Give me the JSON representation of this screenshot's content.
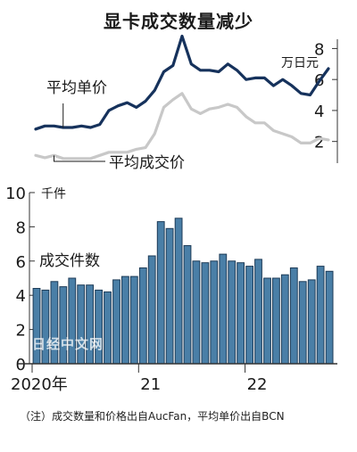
{
  "title": "显卡成交数量减少",
  "note": "（注）成交数量和价格出自AucFan，平均单价出自BCN",
  "watermark": "日经中文网",
  "colors": {
    "navy": "#16325c",
    "gray": "#c8c8c8",
    "bar": "#4a7fa7",
    "bar_edge": "#1d3b57"
  },
  "chart_data": [
    {
      "type": "line",
      "y_unit": "万日元",
      "y_ticks": [
        2,
        4,
        6,
        8
      ],
      "ylim": [
        0.6,
        8.6
      ],
      "series": [
        {
          "name": "平均单价",
          "values": [
            2.8,
            3.0,
            3.0,
            2.9,
            2.9,
            3.0,
            2.9,
            3.1,
            4.0,
            4.3,
            4.5,
            4.2,
            4.6,
            5.3,
            6.5,
            6.9,
            8.8,
            7.0,
            6.6,
            6.6,
            6.5,
            7.0,
            6.6,
            6.0,
            6.1,
            6.1,
            5.6,
            6.0,
            5.6,
            5.1,
            5.0,
            5.9,
            6.7
          ]
        },
        {
          "name": "平均成交价",
          "values": [
            1.1,
            0.95,
            1.1,
            0.9,
            0.9,
            0.9,
            0.9,
            1.1,
            1.3,
            1.3,
            1.3,
            1.5,
            1.6,
            2.5,
            4.2,
            4.7,
            5.1,
            4.1,
            3.8,
            4.1,
            4.2,
            4.4,
            4.2,
            3.6,
            3.2,
            3.2,
            2.7,
            2.5,
            2.3,
            1.9,
            1.9,
            2.2,
            2.1
          ]
        }
      ]
    },
    {
      "type": "bar",
      "y_unit": "千件",
      "y_ticks": [
        0,
        2,
        4,
        6,
        8,
        10
      ],
      "ylim": [
        0,
        10
      ],
      "series_name": "成交件数",
      "x_ticks": [
        {
          "label": "2020年",
          "index": 0
        },
        {
          "label": "21",
          "index": 12
        },
        {
          "label": "22",
          "index": 24
        }
      ],
      "values": [
        4.4,
        4.3,
        4.8,
        4.5,
        5.0,
        4.6,
        4.6,
        4.3,
        4.2,
        4.9,
        5.1,
        5.1,
        5.6,
        6.3,
        8.3,
        7.9,
        8.5,
        6.9,
        6.0,
        5.9,
        6.0,
        6.4,
        6.0,
        5.9,
        5.7,
        6.1,
        5.0,
        5.0,
        5.2,
        5.6,
        4.8,
        4.9,
        5.7,
        5.4
      ]
    }
  ]
}
